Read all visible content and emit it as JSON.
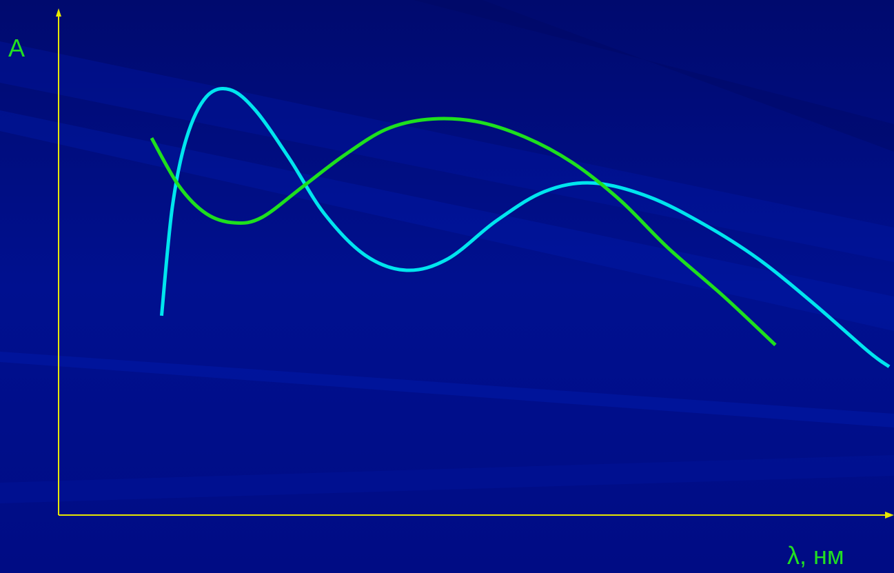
{
  "chart_data": {
    "type": "line",
    "y_label": "A",
    "x_label": "λ, нм",
    "xlim": [
      0,
      100
    ],
    "ylim": [
      0,
      100
    ],
    "grid": false,
    "series": [
      {
        "color": "#00e5ee",
        "x": [
          12.4,
          13.7,
          15.4,
          17.8,
          20.6,
          23.7,
          27.8,
          32.0,
          36.9,
          41.9,
          46.9,
          52.7,
          58.5,
          64.3,
          71.0,
          77.6,
          84.2,
          90.9,
          97.5,
          100
        ],
        "values": [
          39.5,
          61.1,
          74.7,
          82.9,
          84.3,
          80.2,
          70.6,
          59.7,
          51.5,
          48.5,
          50.8,
          58.3,
          64.1,
          65.8,
          63.1,
          57.7,
          50.8,
          41.9,
          32.4,
          29.4
        ]
      },
      {
        "color": "#1ee01e",
        "x": [
          11.2,
          14.5,
          17.8,
          21.2,
          24.5,
          29.5,
          34.4,
          39.4,
          44.4,
          50.2,
          56.0,
          61.8,
          67.6,
          73.4,
          80.1,
          86.3
        ],
        "values": [
          74.7,
          65.2,
          59.7,
          57.9,
          59.0,
          65.2,
          71.3,
          76.4,
          78.4,
          78.0,
          75.0,
          69.9,
          62.4,
          52.9,
          43.3,
          33.7
        ]
      }
    ]
  }
}
